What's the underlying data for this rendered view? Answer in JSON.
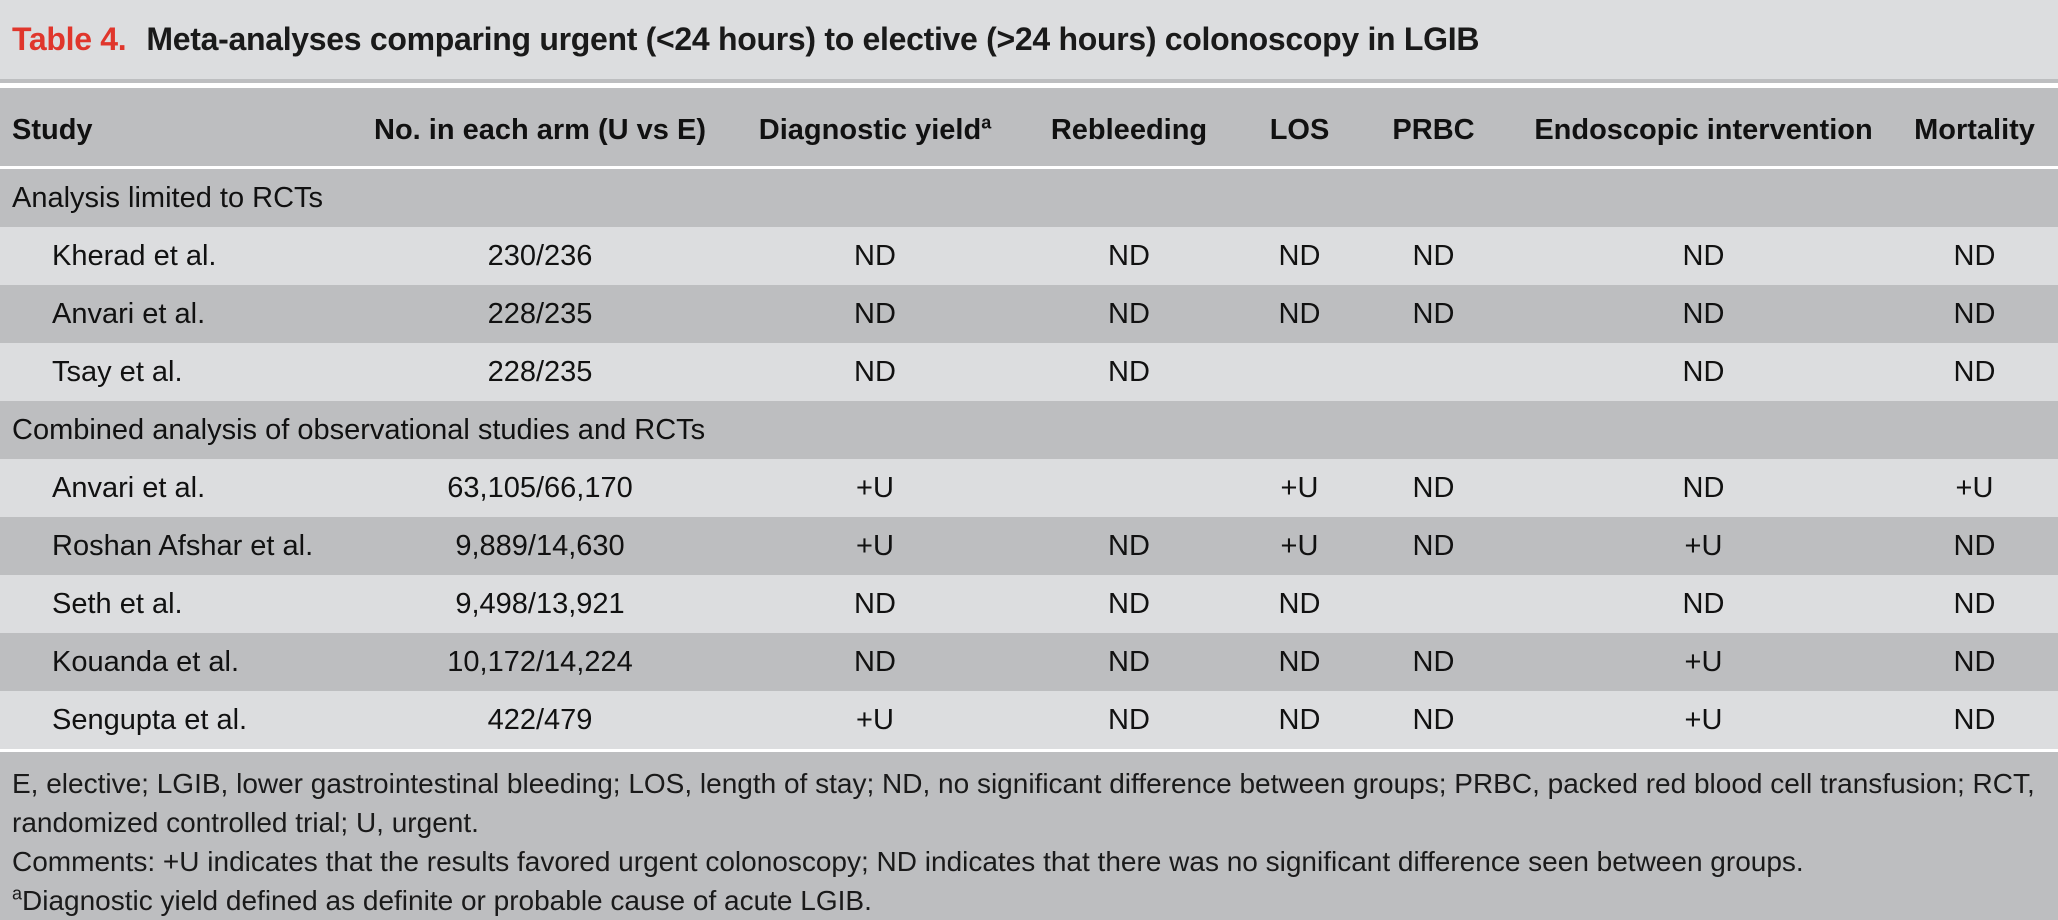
{
  "table_label": "Table 4.",
  "title": "Meta-analyses comparing urgent (<24 hours) to elective (>24 hours) colonoscopy in LGIB",
  "headers": {
    "study": "Study",
    "arm": "No. in each arm (U vs E)",
    "dy": "Diagnostic yield",
    "dy_sup": "a",
    "rebleeding": "Rebleeding",
    "los": "LOS",
    "prbc": "PRBC",
    "endo": "Endoscopic intervention",
    "mortality": "Mortality"
  },
  "sections": [
    {
      "label": "Analysis limited to RCTs",
      "rows": [
        {
          "study": "Kherad et al.",
          "arm": "230/236",
          "dy": "ND",
          "rebleeding": "ND",
          "los": "ND",
          "prbc": "ND",
          "endo": "ND",
          "mortality": "ND"
        },
        {
          "study": "Anvari et al.",
          "arm": "228/235",
          "dy": "ND",
          "rebleeding": "ND",
          "los": "ND",
          "prbc": "ND",
          "endo": "ND",
          "mortality": "ND"
        },
        {
          "study": "Tsay et al.",
          "arm": "228/235",
          "dy": "ND",
          "rebleeding": "ND",
          "los": "",
          "prbc": "",
          "endo": "ND",
          "mortality": "ND"
        }
      ]
    },
    {
      "label": "Combined analysis of observational studies and RCTs",
      "rows": [
        {
          "study": "Anvari et al.",
          "arm": "63,105/66,170",
          "dy": "+U",
          "rebleeding": "",
          "los": "+U",
          "prbc": "ND",
          "endo": "ND",
          "mortality": "+U"
        },
        {
          "study": "Roshan Afshar et al.",
          "arm": "9,889/14,630",
          "dy": "+U",
          "rebleeding": "ND",
          "los": "+U",
          "prbc": "ND",
          "endo": "+U",
          "mortality": "ND"
        },
        {
          "study": "Seth et al.",
          "arm": "9,498/13,921",
          "dy": "ND",
          "rebleeding": "ND",
          "los": "ND",
          "prbc": "",
          "endo": "ND",
          "mortality": "ND"
        },
        {
          "study": "Kouanda et al.",
          "arm": "10,172/14,224",
          "dy": "ND",
          "rebleeding": "ND",
          "los": "ND",
          "prbc": "ND",
          "endo": "+U",
          "mortality": "ND"
        },
        {
          "study": "Sengupta et al.",
          "arm": "422/479",
          "dy": "+U",
          "rebleeding": "ND",
          "los": "ND",
          "prbc": "ND",
          "endo": "+U",
          "mortality": "ND"
        }
      ]
    }
  ],
  "footnotes": {
    "abbreviations": "E, elective; LGIB, lower gastrointestinal bleeding; LOS, length of stay; ND, no significant difference between groups; PRBC, packed red blood cell transfusion; RCT, randomized controlled trial; U, urgent.",
    "comments": "Comments: +U indicates that the results favored urgent colonoscopy; ND indicates that there was no significant difference seen between groups.",
    "a_marker": "a",
    "a_text": "Diagnostic yield defined as definite or probable cause of acute LGIB."
  }
}
